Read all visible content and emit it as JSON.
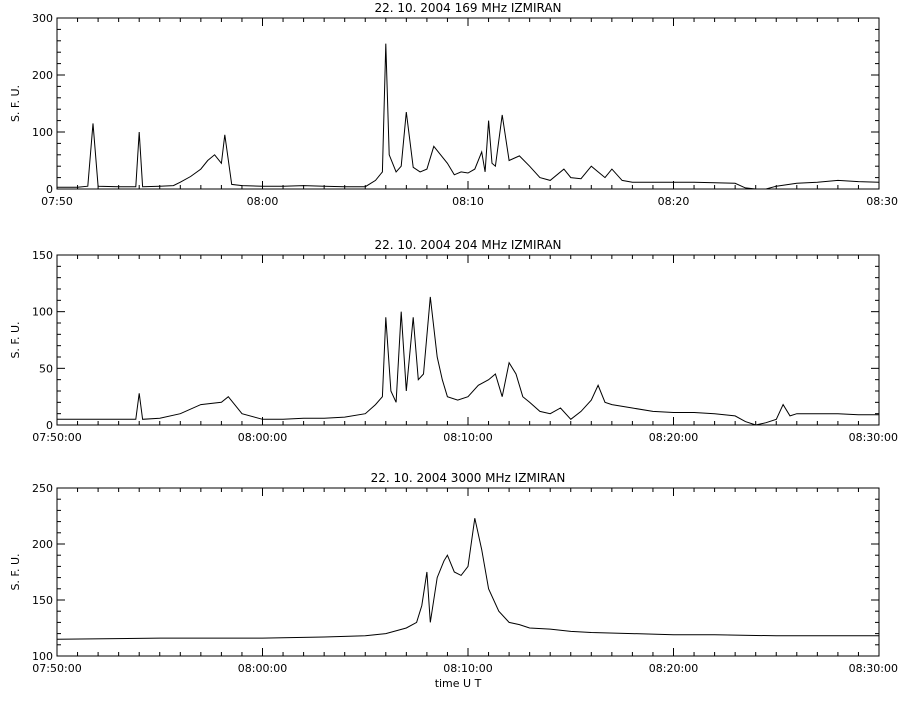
{
  "chart_data": [
    {
      "type": "line",
      "title": "22.  10.  2004    169 MHz    IZMIRAN",
      "ylabel": "S. F. U.",
      "xlabel": "",
      "xlim": [
        "07:50",
        "08:30"
      ],
      "ylim": [
        0,
        300
      ],
      "x_ticks": [
        "07:50",
        "08:00",
        "08:10",
        "08:20",
        "08:30"
      ],
      "y_ticks": [
        0,
        100,
        200,
        300
      ],
      "grid": false,
      "series": [
        {
          "x": [
            "07:50:00",
            "07:51:00",
            "07:51:30",
            "07:51:45",
            "07:52:00",
            "07:53:00",
            "07:53:50",
            "07:54:00",
            "07:54:10",
            "07:55:00",
            "07:55:40",
            "07:56:00",
            "07:56:30",
            "07:57:00",
            "07:57:20",
            "07:57:40",
            "07:58:00",
            "07:58:10",
            "07:58:30",
            "07:59:00",
            "08:00:00",
            "08:01:00",
            "08:02:00",
            "08:03:00",
            "08:04:00",
            "08:05:00",
            "08:05:30",
            "08:05:50",
            "08:06:00",
            "08:06:10",
            "08:06:30",
            "08:06:45",
            "08:07:00",
            "08:07:20",
            "08:07:40",
            "08:08:00",
            "08:08:20",
            "08:08:40",
            "08:09:00",
            "08:09:20",
            "08:09:40",
            "08:10:00",
            "08:10:20",
            "08:10:40",
            "08:10:50",
            "08:11:00",
            "08:11:10",
            "08:11:20",
            "08:11:40",
            "08:12:00",
            "08:12:30",
            "08:13:00",
            "08:13:30",
            "08:14:00",
            "08:14:40",
            "08:15:00",
            "08:15:30",
            "08:16:00",
            "08:16:20",
            "08:16:40",
            "08:17:00",
            "08:17:30",
            "08:18:00",
            "08:19:00",
            "08:20:00",
            "08:21:00",
            "08:22:00",
            "08:23:00",
            "08:23:30",
            "08:24:00",
            "08:24:30",
            "08:25:00",
            "08:26:00",
            "08:27:00",
            "08:28:00",
            "08:29:00",
            "08:30:00"
          ],
          "values": [
            3,
            3,
            5,
            115,
            5,
            4,
            4,
            100,
            4,
            5,
            6,
            12,
            22,
            35,
            50,
            60,
            45,
            95,
            8,
            6,
            5,
            5,
            6,
            5,
            4,
            4,
            15,
            30,
            255,
            60,
            30,
            40,
            135,
            38,
            30,
            35,
            75,
            60,
            45,
            25,
            30,
            28,
            35,
            65,
            30,
            120,
            45,
            40,
            130,
            50,
            58,
            40,
            20,
            15,
            35,
            20,
            18,
            40,
            30,
            20,
            35,
            15,
            12,
            12,
            12,
            12,
            11,
            10,
            2,
            -5,
            0,
            5,
            10,
            12,
            15,
            13,
            12
          ]
        }
      ]
    },
    {
      "type": "line",
      "title": "22.  10.  2004    204 MHz    IZMIRAN",
      "ylabel": "S. F. U.",
      "xlabel": "",
      "xlim": [
        "07:50:00",
        "08:30:00"
      ],
      "ylim": [
        0,
        150
      ],
      "x_ticks": [
        "07:50:00",
        "08:00:00",
        "08:10:00",
        "08:20:00",
        "08:30:00"
      ],
      "y_ticks": [
        0,
        50,
        100,
        150
      ],
      "grid": false,
      "series": [
        {
          "x": [
            "07:50:00",
            "07:52:00",
            "07:53:50",
            "07:54:00",
            "07:54:10",
            "07:55:00",
            "07:56:00",
            "07:57:00",
            "07:58:00",
            "07:58:20",
            "07:59:00",
            "08:00:00",
            "08:01:00",
            "08:02:00",
            "08:03:00",
            "08:04:00",
            "08:05:00",
            "08:05:30",
            "08:05:50",
            "08:06:00",
            "08:06:15",
            "08:06:30",
            "08:06:45",
            "08:07:00",
            "08:07:20",
            "08:07:35",
            "08:07:50",
            "08:08:10",
            "08:08:30",
            "08:08:45",
            "08:09:00",
            "08:09:30",
            "08:10:00",
            "08:10:30",
            "08:11:00",
            "08:11:20",
            "08:11:40",
            "08:12:00",
            "08:12:20",
            "08:12:40",
            "08:13:00",
            "08:13:30",
            "08:14:00",
            "08:14:30",
            "08:15:00",
            "08:15:30",
            "08:16:00",
            "08:16:20",
            "08:16:40",
            "08:17:00",
            "08:18:00",
            "08:19:00",
            "08:20:00",
            "08:21:00",
            "08:22:00",
            "08:23:00",
            "08:23:30",
            "08:24:00",
            "08:24:30",
            "08:25:00",
            "08:25:20",
            "08:25:40",
            "08:26:00",
            "08:27:00",
            "08:28:00",
            "08:29:00",
            "08:30:00"
          ],
          "values": [
            5,
            5,
            5,
            28,
            5,
            6,
            10,
            18,
            20,
            25,
            10,
            5,
            5,
            6,
            6,
            7,
            10,
            18,
            25,
            95,
            30,
            20,
            100,
            30,
            95,
            40,
            45,
            113,
            60,
            40,
            25,
            22,
            25,
            35,
            40,
            45,
            25,
            55,
            45,
            25,
            20,
            12,
            10,
            15,
            5,
            12,
            22,
            35,
            20,
            18,
            15,
            12,
            11,
            11,
            10,
            8,
            3,
            0,
            2,
            5,
            18,
            8,
            10,
            10,
            10,
            9,
            9
          ]
        }
      ]
    },
    {
      "type": "line",
      "title": "22.  10.  2004    3000 MHz    IZMIRAN",
      "ylabel": "S. F. U.",
      "xlabel": "time  U  T",
      "xlim": [
        "07:50:00",
        "08:30:00"
      ],
      "ylim": [
        100,
        250
      ],
      "x_ticks": [
        "07:50:00",
        "08:00:00",
        "08:10:00",
        "08:20:00",
        "08:30:00"
      ],
      "y_ticks": [
        100,
        150,
        200,
        250
      ],
      "grid": false,
      "series": [
        {
          "x": [
            "07:50:00",
            "07:55:00",
            "08:00:00",
            "08:03:00",
            "08:05:00",
            "08:06:00",
            "08:07:00",
            "08:07:30",
            "08:07:45",
            "08:08:00",
            "08:08:10",
            "08:08:30",
            "08:08:50",
            "08:09:00",
            "08:09:20",
            "08:09:40",
            "08:10:00",
            "08:10:20",
            "08:10:40",
            "08:11:00",
            "08:11:30",
            "08:12:00",
            "08:12:30",
            "08:13:00",
            "08:14:00",
            "08:15:00",
            "08:16:00",
            "08:18:00",
            "08:20:00",
            "08:22:00",
            "08:25:00",
            "08:28:00",
            "08:30:00"
          ],
          "values": [
            115,
            116,
            116,
            117,
            118,
            120,
            125,
            130,
            145,
            175,
            130,
            170,
            185,
            190,
            175,
            172,
            180,
            223,
            195,
            160,
            140,
            130,
            128,
            125,
            124,
            122,
            121,
            120,
            119,
            119,
            118,
            118,
            118
          ]
        }
      ]
    }
  ]
}
